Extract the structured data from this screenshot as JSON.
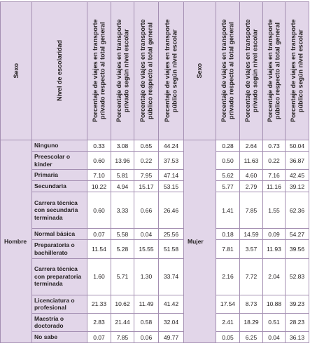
{
  "headers": {
    "sexo": "Sexo",
    "nivel": "Nivel de escolaridad",
    "cols": [
      "Porcentaje de viajes en transporte privado respecto al total general",
      "Porcentaje de viajes en transporte privado según nivel escolar",
      "Porcentaje de viajes en transporte público respecto al total general",
      "Porcentaje de viajes en transporte público según nivel escolar"
    ]
  },
  "groups": [
    {
      "label": "Hombre"
    },
    {
      "label": "Mujer"
    }
  ],
  "rows": [
    {
      "level": "Ninguno",
      "h": [
        "0.33",
        "3.08",
        "0.65",
        "44.24"
      ],
      "m": [
        "0.28",
        "2.64",
        "0.73",
        "50.04"
      ]
    },
    {
      "level": "Preescolar o kínder",
      "h": [
        "0.60",
        "13.96",
        "0.22",
        "37.53"
      ],
      "m": [
        "0.50",
        "11.63",
        "0.22",
        "36.87"
      ]
    },
    {
      "level": "Primaria",
      "h": [
        "7.10",
        "5.81",
        "7.95",
        "47.14"
      ],
      "m": [
        "5.62",
        "4.60",
        "7.16",
        "42.45"
      ]
    },
    {
      "level": "Secundaria",
      "h": [
        "10.22",
        "4.94",
        "15.17",
        "53.15"
      ],
      "m": [
        "5.77",
        "2.79",
        "11.16",
        "39.12"
      ]
    },
    {
      "level": "Carrera técnica con secundaria terminada",
      "h": [
        "0.60",
        "3.33",
        "0.66",
        "26.46"
      ],
      "m": [
        "1.41",
        "7.85",
        "1.55",
        "62.36"
      ]
    },
    {
      "level": "Normal básica",
      "h": [
        "0.07",
        "5.58",
        "0.04",
        "25.56"
      ],
      "m": [
        "0.18",
        "14.59",
        "0.09",
        "54.27"
      ]
    },
    {
      "level": "Preparatoria o bachillerato",
      "h": [
        "11.54",
        "5.28",
        "15.55",
        "51.58"
      ],
      "m": [
        "7.81",
        "3.57",
        "11.93",
        "39.56"
      ]
    },
    {
      "level": "Carrera técnica con preparatoria terminada",
      "h": [
        "1.60",
        "5.71",
        "1.30",
        "33.74"
      ],
      "m": [
        "2.16",
        "7.72",
        "2.04",
        "52.83"
      ]
    },
    {
      "level": "Licenciatura o profesional",
      "h": [
        "21.33",
        "10.62",
        "11.49",
        "41.42"
      ],
      "m": [
        "17.54",
        "8.73",
        "10.88",
        "39.23"
      ]
    },
    {
      "level": "Maestría o doctorado",
      "h": [
        "2.83",
        "21.44",
        "0.58",
        "32.04"
      ],
      "m": [
        "2.41",
        "18.29",
        "0.51",
        "28.23"
      ]
    },
    {
      "level": "No sabe",
      "h": [
        "0.07",
        "7.85",
        "0.06",
        "49.77"
      ],
      "m": [
        "0.05",
        "6.25",
        "0.04",
        "36.13"
      ]
    }
  ]
}
